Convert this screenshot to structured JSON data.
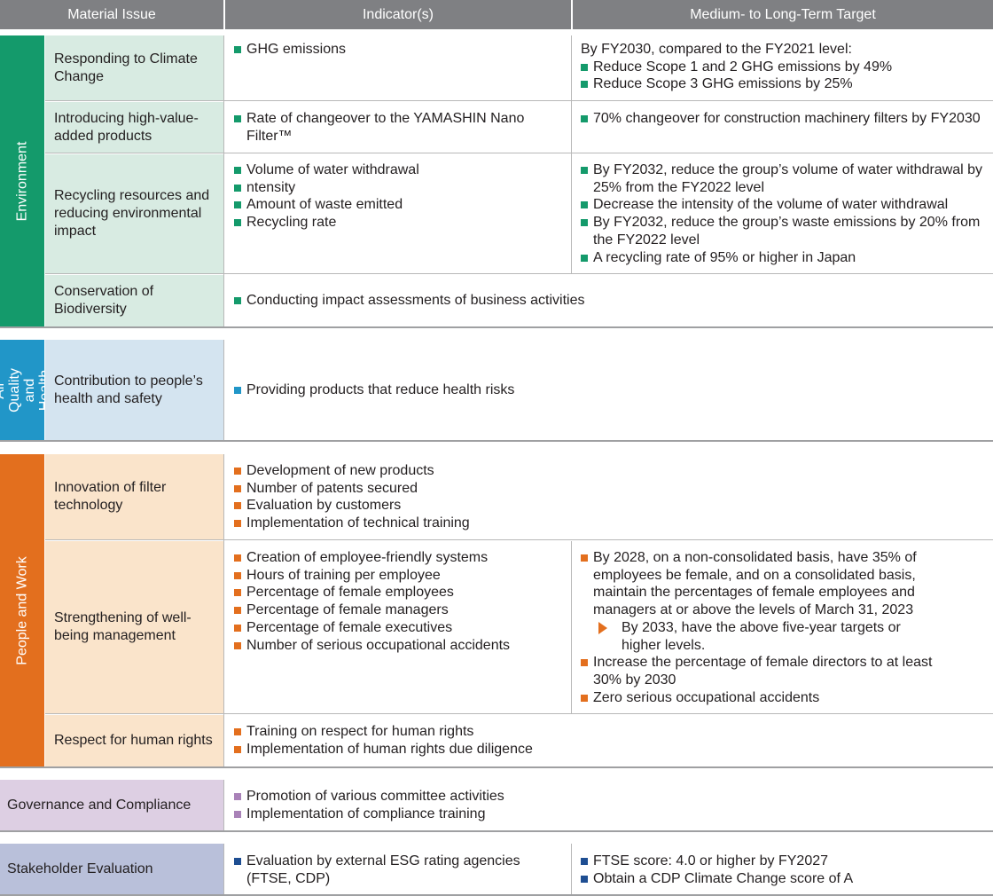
{
  "colors": {
    "environment": "#149a6b",
    "environment_light": "#d8ebe2",
    "air": "#2196c8",
    "air_light": "#d4e4f0",
    "people": "#e36f1e",
    "people_light": "#fae4cb",
    "governance": "#a982b8",
    "governance_light": "#ddcfe3",
    "stakeholder": "#1e4e92",
    "stakeholder_light": "#b9c0da",
    "header": "#7f8083"
  },
  "header": {
    "issue": "Material Issue",
    "indicators": "Indicator(s)",
    "target": "Medium- to Long-Term Target"
  },
  "categories": {
    "environment": "Environment",
    "air": "Air Quality and Health",
    "people": "People and Work"
  },
  "rows": {
    "climate": {
      "issue": "Responding to Climate Change",
      "indicators": [
        "GHG emissions"
      ],
      "target_intro": "By FY2030, compared to the FY2021 level:",
      "targets": [
        "Reduce Scope 1 and 2 GHG emissions by 49%",
        "Reduce Scope 3 GHG emissions by 25%"
      ]
    },
    "highvalue": {
      "issue": "Introducing high-value-added products",
      "indicators": [
        "Rate of changeover to the YAMASHIN Nano Filter™"
      ],
      "targets": [
        "70% changeover for construction machinery filters by FY2030"
      ]
    },
    "recycling": {
      "issue": "Recycling resources and reducing environmental impact",
      "indicators": [
        "Volume of water withdrawal",
        "ntensity",
        "Amount of waste emitted",
        "Recycling rate"
      ],
      "targets": [
        "By FY2032, reduce the group’s volume of water withdrawal by 25% from the FY2022 level",
        "Decrease the intensity of the volume of water withdrawal",
        "By FY2032, reduce the group’s waste emissions by 20% from the FY2022 level",
        "A recycling rate of 95% or higher in Japan"
      ]
    },
    "biodiversity": {
      "issue": "Conservation of Biodiversity",
      "indicators": [
        "Conducting impact assessments of business activities"
      ]
    },
    "health": {
      "issue": "Contribution to people’s health and safety",
      "indicators": [
        "Providing products that reduce health risks"
      ]
    },
    "innovation": {
      "issue": "Innovation of filter technology",
      "indicators": [
        "Development of new products",
        "Number of patents secured",
        "Evaluation by customers",
        "Implementation of technical training"
      ]
    },
    "wellbeing": {
      "issue": "Strengthening of well-being management",
      "indicators": [
        "Creation of employee-friendly systems",
        "Hours of training per employee",
        "Percentage of female employees",
        "Percentage of female managers",
        "Percentage of female executives",
        "Number of serious occupational accidents"
      ],
      "targets": [
        "By 2028, on a non-consolidated basis, have 35% of employees be female, and on a consolidated basis, maintain the percentages of female employees and managers at or above the levels of March 31, 2023",
        "Increase the percentage of female directors to at least 30% by 2030",
        "Zero serious occupational accidents"
      ],
      "subtarget": "By 2033, have the above five-year targets or higher levels."
    },
    "humanrights": {
      "issue": "Respect for human rights",
      "indicators": [
        "Training on respect for human rights",
        "Implementation of human rights due diligence"
      ]
    },
    "governance": {
      "issue": "Governance and Compliance",
      "indicators": [
        "Promotion of various committee activities",
        "Implementation of compliance training"
      ]
    },
    "stakeholder": {
      "issue": "Stakeholder Evaluation",
      "indicators": [
        "Evaluation by external ESG rating agencies (FTSE, CDP)"
      ],
      "targets": [
        "FTSE score: 4.0 or higher by FY2027",
        "Obtain a CDP Climate Change score of A"
      ]
    }
  }
}
